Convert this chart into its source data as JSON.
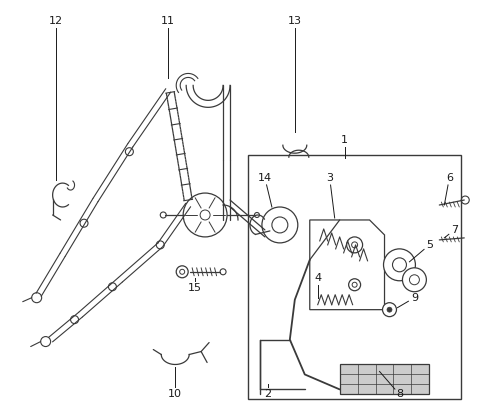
{
  "bg_color": "#ffffff",
  "line_color": "#3a3a3a",
  "label_color": "#1a1a1a",
  "figsize": [
    4.8,
    4.18
  ],
  "dpi": 100
}
